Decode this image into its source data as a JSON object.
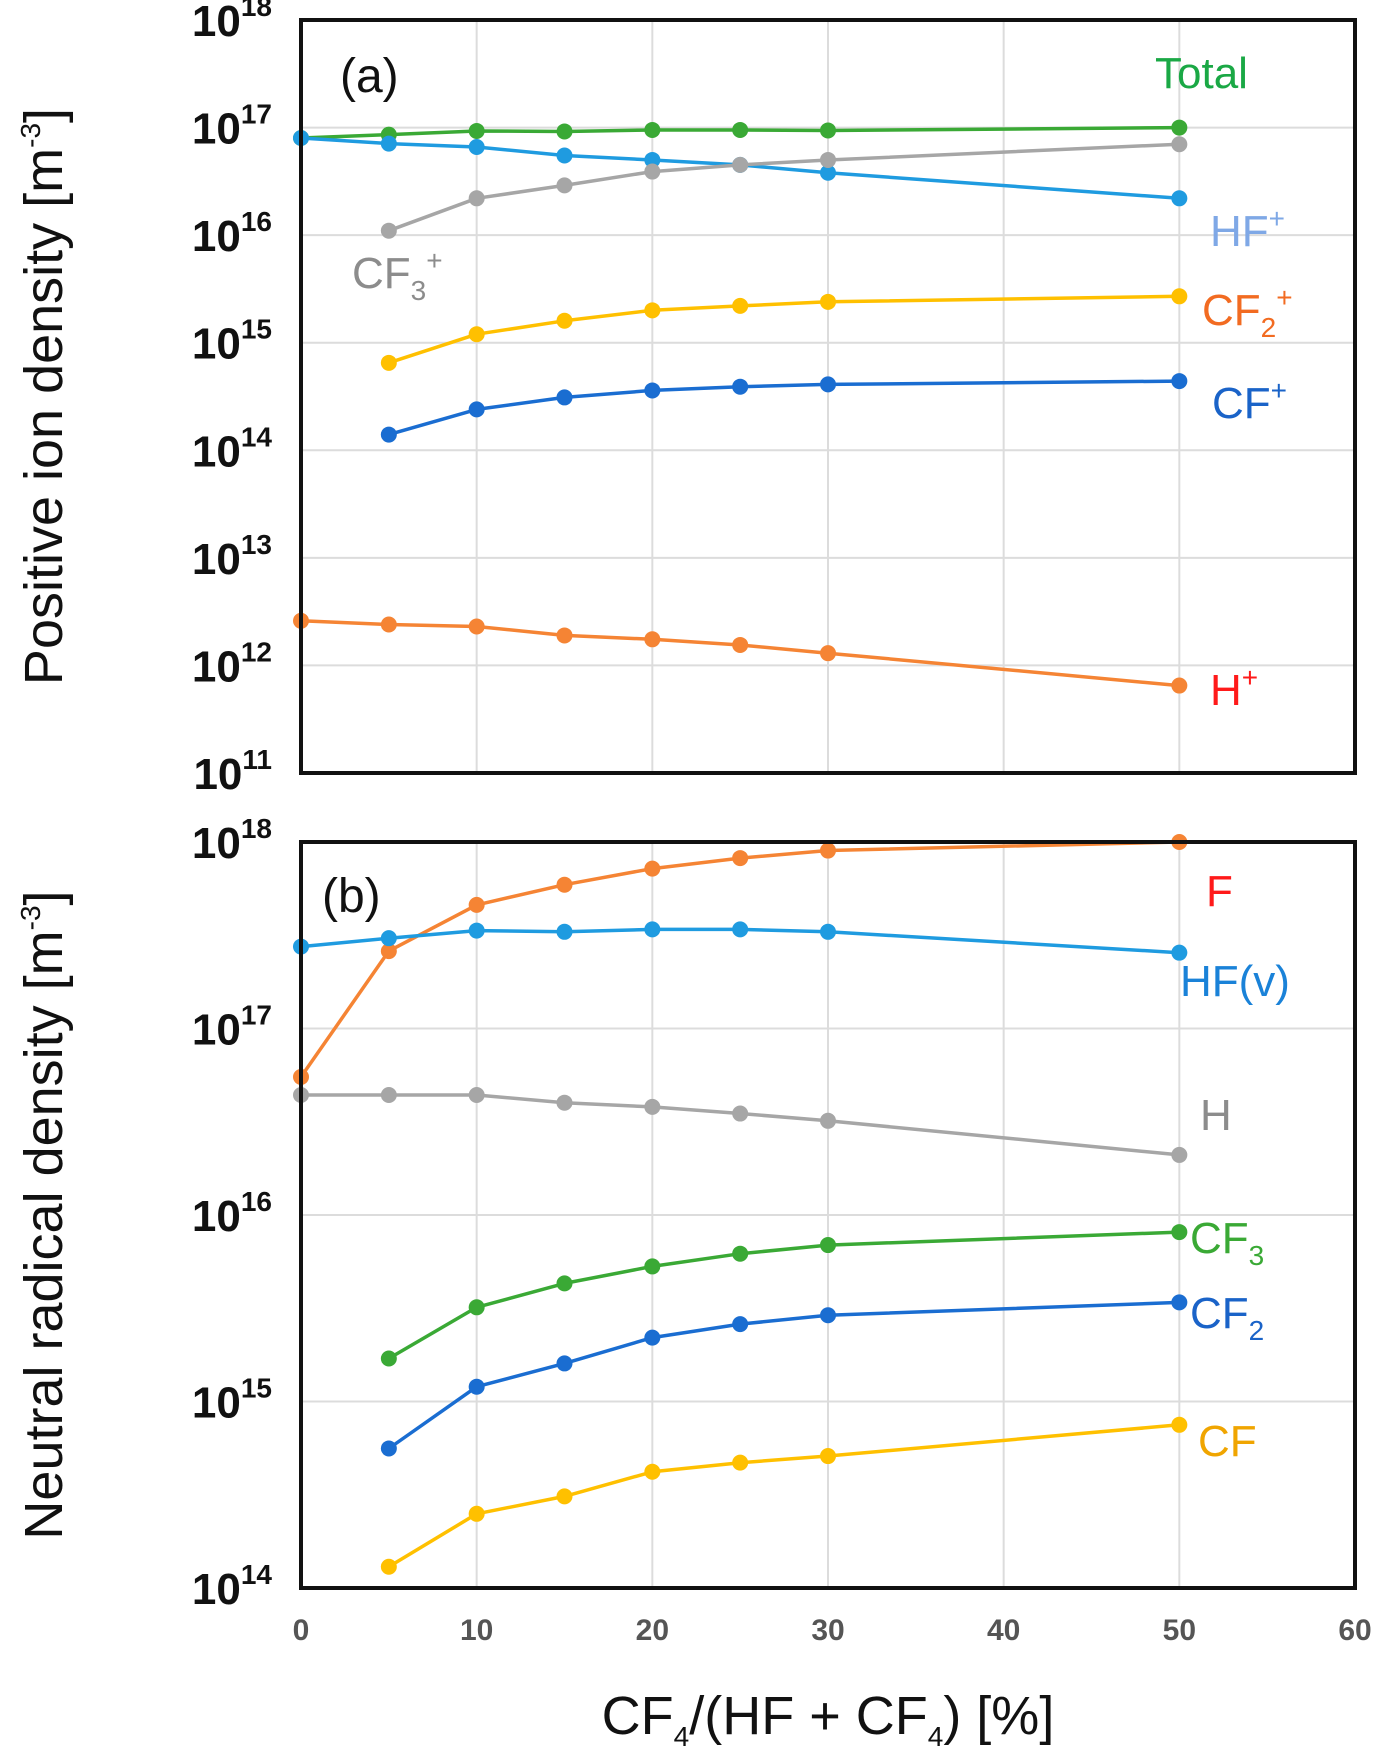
{
  "chart_data": [
    {
      "type": "line",
      "panel": "(a)",
      "ylabel": "Positive ion density [m",
      "ylabel_sup": "-3",
      "ylabel_end": "]",
      "yscale": "log",
      "ylim": [
        100000000000.0,
        1e+18
      ],
      "xlim": [
        0,
        60
      ],
      "grid": true,
      "y_ticks": [
        {
          "base": "10",
          "exp": "11",
          "value": 100000000000.0
        },
        {
          "base": "10",
          "exp": "12",
          "value": 1000000000000.0
        },
        {
          "base": "10",
          "exp": "13",
          "value": 10000000000000.0
        },
        {
          "base": "10",
          "exp": "14",
          "value": 100000000000000.0
        },
        {
          "base": "10",
          "exp": "15",
          "value": 1000000000000000.0
        },
        {
          "base": "10",
          "exp": "16",
          "value": 1e+16
        },
        {
          "base": "10",
          "exp": "17",
          "value": 1e+17
        },
        {
          "base": "10",
          "exp": "18",
          "value": 1e+18
        }
      ],
      "series": [
        {
          "name": "Total",
          "label": "Total",
          "sup": "",
          "sub": "",
          "line_color": "#3aa935",
          "label_color": "#1aa845",
          "x": [
            0,
            5,
            10,
            15,
            20,
            25,
            30,
            50
          ],
          "y": [
            8e+16,
            8.6e+16,
            9.3e+16,
            9.2e+16,
            9.5e+16,
            9.5e+16,
            9.4e+16,
            1e+17
          ]
        },
        {
          "name": "HF+",
          "label": "HF",
          "sup": "+",
          "sub": "",
          "line_color": "#1f9be0",
          "label_color": "#7fa8e6",
          "x": [
            0,
            5,
            10,
            15,
            20,
            25,
            30,
            50
          ],
          "y": [
            8e+16,
            7.1e+16,
            6.6e+16,
            5.5e+16,
            5e+16,
            4.5e+16,
            3.8e+16,
            2.2e+16
          ]
        },
        {
          "name": "CF3+",
          "label": "CF",
          "sup": "+",
          "sub": "3",
          "line_color": "#a6a6a6",
          "label_color": "#8c8c8c",
          "x": [
            5,
            10,
            15,
            20,
            25,
            30,
            50
          ],
          "y": [
            1.1e+16,
            2.2e+16,
            2.9e+16,
            3.9e+16,
            4.5e+16,
            5e+16,
            7e+16
          ]
        },
        {
          "name": "CF2+",
          "label": "CF",
          "sup": "+",
          "sub": "2",
          "line_color": "#ffc000",
          "label_color": "#f26b21",
          "x": [
            5,
            10,
            15,
            20,
            25,
            30,
            50
          ],
          "y": [
            650000000000000.0,
            1200000000000000.0,
            1600000000000000.0,
            2000000000000000.0,
            2200000000000000.0,
            2400000000000000.0,
            2700000000000000.0
          ]
        },
        {
          "name": "CF+",
          "label": "CF",
          "sup": "+",
          "sub": "",
          "line_color": "#1a6dd1",
          "label_color": "#1a63c8",
          "x": [
            5,
            10,
            15,
            20,
            25,
            30,
            50
          ],
          "y": [
            140000000000000.0,
            240000000000000.0,
            310000000000000.0,
            360000000000000.0,
            390000000000000.0,
            410000000000000.0,
            440000000000000.0
          ]
        },
        {
          "name": "H+",
          "label": "H",
          "sup": "+",
          "sub": "",
          "line_color": "#f58434",
          "label_color": "#ff1a1a",
          "x": [
            0,
            5,
            10,
            15,
            20,
            25,
            30,
            50
          ],
          "y": [
            2600000000000.0,
            2400000000000.0,
            2300000000000.0,
            1900000000000.0,
            1750000000000.0,
            1550000000000.0,
            1300000000000.0,
            650000000000.0
          ]
        }
      ]
    },
    {
      "type": "line",
      "panel": "(b)",
      "ylabel": "Neutral radical density [m",
      "ylabel_sup": "-3",
      "ylabel_end": "]",
      "yscale": "log",
      "ylim": [
        100000000000000.0,
        1e+18
      ],
      "xlim": [
        0,
        60
      ],
      "grid": true,
      "xlabel_parts": [
        "CF",
        "4",
        "/(HF + CF",
        "4",
        ") [%]"
      ],
      "x_ticks": [
        "0",
        "10",
        "20",
        "30",
        "40",
        "50",
        "60"
      ],
      "y_ticks": [
        {
          "base": "10",
          "exp": "14",
          "value": 100000000000000.0
        },
        {
          "base": "10",
          "exp": "15",
          "value": 1000000000000000.0
        },
        {
          "base": "10",
          "exp": "16",
          "value": 1e+16
        },
        {
          "base": "10",
          "exp": "17",
          "value": 1e+17
        },
        {
          "base": "10",
          "exp": "18",
          "value": 1e+18
        }
      ],
      "series": [
        {
          "name": "F",
          "label": "F",
          "sup": "",
          "sub": "",
          "line_color": "#f58434",
          "label_color": "#ff1a1a",
          "x": [
            0,
            5,
            10,
            15,
            20,
            25,
            30,
            50
          ],
          "y": [
            5.5e+16,
            2.6e+17,
            4.6e+17,
            5.9e+17,
            7.2e+17,
            8.2e+17,
            9e+17,
            1e+18
          ]
        },
        {
          "name": "HF(v)",
          "label": "HF(v)",
          "sup": "",
          "sub": "",
          "line_color": "#1f9be0",
          "label_color": "#1a82d8",
          "x": [
            0,
            5,
            10,
            15,
            20,
            25,
            30,
            50
          ],
          "y": [
            2.75e+17,
            3.05e+17,
            3.35e+17,
            3.3e+17,
            3.4e+17,
            3.4e+17,
            3.3e+17,
            2.55e+17
          ]
        },
        {
          "name": "H",
          "label": "H",
          "sup": "",
          "sub": "",
          "line_color": "#a6a6a6",
          "label_color": "#8c8c8c",
          "x": [
            0,
            5,
            10,
            15,
            20,
            25,
            30,
            50
          ],
          "y": [
            4.4e+16,
            4.4e+16,
            4.4e+16,
            4e+16,
            3.8e+16,
            3.5e+16,
            3.2e+16,
            2.1e+16
          ]
        },
        {
          "name": "CF3",
          "label": "CF",
          "sup": "",
          "sub": "3",
          "line_color": "#3aa935",
          "label_color": "#3aa935",
          "x": [
            5,
            10,
            15,
            20,
            25,
            30,
            50
          ],
          "y": [
            1700000000000000.0,
            3200000000000000.0,
            4300000000000000.0,
            5300000000000000.0,
            6200000000000000.0,
            6900000000000000.0,
            8100000000000000.0
          ]
        },
        {
          "name": "CF2",
          "label": "CF",
          "sup": "",
          "sub": "2",
          "line_color": "#1a6dd1",
          "label_color": "#1a63c8",
          "x": [
            5,
            10,
            15,
            20,
            25,
            30,
            50
          ],
          "y": [
            560000000000000.0,
            1200000000000000.0,
            1600000000000000.0,
            2200000000000000.0,
            2600000000000000.0,
            2900000000000000.0,
            3400000000000000.0
          ]
        },
        {
          "name": "CF",
          "label": "CF",
          "sup": "",
          "sub": "",
          "line_color": "#ffc000",
          "label_color": "#f0a500",
          "x": [
            5,
            10,
            15,
            20,
            25,
            30,
            50
          ],
          "y": [
            130000000000000.0,
            250000000000000.0,
            310000000000000.0,
            420000000000000.0,
            470000000000000.0,
            510000000000000.0,
            750000000000000.0
          ]
        }
      ]
    }
  ]
}
